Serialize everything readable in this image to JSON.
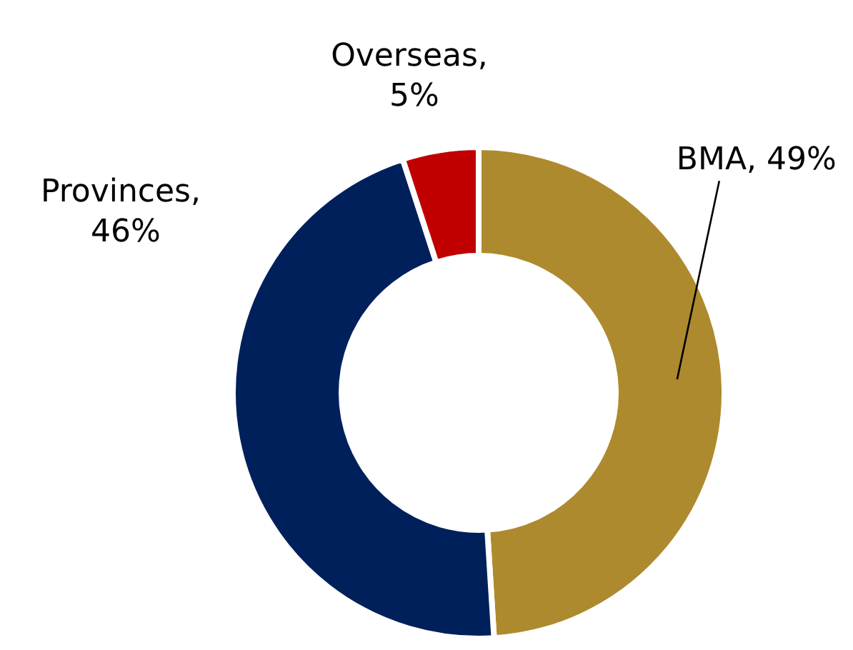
{
  "chart_data": {
    "type": "donut",
    "categories": [
      "BMA",
      "Provinces",
      "Overseas"
    ],
    "values": [
      49,
      46,
      5
    ],
    "colors": [
      "#ae8a2e",
      "#00205b",
      "#c00000"
    ],
    "value_labels": [
      ", 49%",
      ", 46%",
      ", 5%"
    ],
    "legend": false
  }
}
